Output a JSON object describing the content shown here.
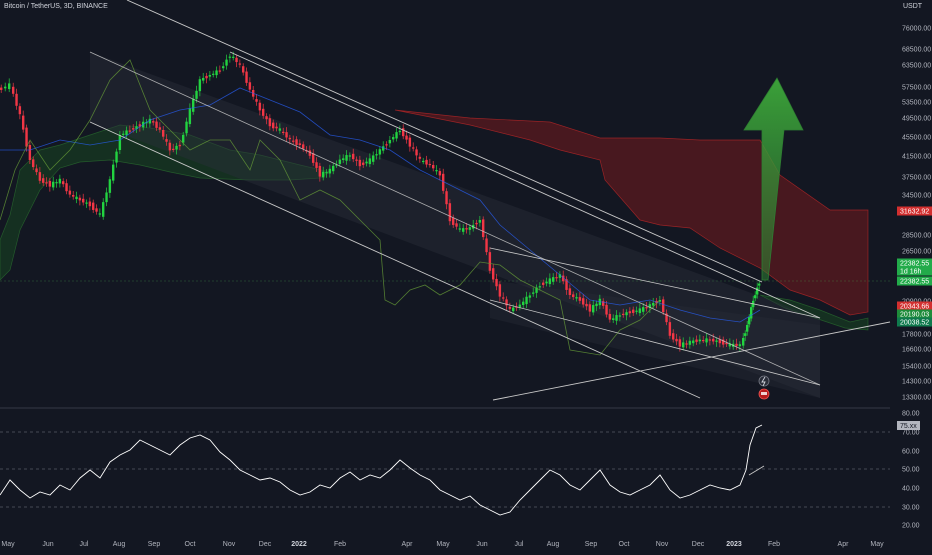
{
  "header": {
    "symbol_title": "Bitcoin / TetherUS, 3D, BINANCE",
    "currency": "USDT"
  },
  "price_axis": {
    "ticks": [
      76000,
      68500,
      63500,
      57500,
      53500,
      49500,
      45500,
      41500,
      37500,
      34500,
      28500,
      26500,
      20900,
      17800,
      16600,
      15400,
      14300,
      13300
    ]
  },
  "price_tags": [
    {
      "label": "31632.92",
      "color": "#d32f2f"
    },
    {
      "label": "22382.55",
      "color": "#22ab4a"
    },
    {
      "label": "1d 16h",
      "color": "#22ab4a"
    },
    {
      "label": "22382.55",
      "color": "#22ab4a"
    },
    {
      "label": "20343.66",
      "color": "#d32f2f"
    },
    {
      "label": "20190.03",
      "color": "#1e8c3a"
    },
    {
      "label": "20038.52",
      "color": "#0f7a4d"
    }
  ],
  "rsi_axis": {
    "ticks": [
      "80.00",
      "70.00",
      "60.00",
      "50.00",
      "40.00",
      "30.00",
      "20.00"
    ],
    "current_label": "75.xx"
  },
  "time_axis": {
    "labels": [
      "May",
      "Jun",
      "Jul",
      "Aug",
      "Sep",
      "Oct",
      "Nov",
      "Dec",
      "2022",
      "Feb",
      "Apr",
      "May",
      "Jun",
      "Jul",
      "Aug",
      "Sep",
      "Oct",
      "Nov",
      "Dec",
      "2023",
      "Feb",
      "Apr",
      "May"
    ]
  },
  "colors": {
    "background": "#131722",
    "up_candle": "#22d340",
    "down_candle": "#f23645",
    "rsi_line": "#ffffff",
    "channel_lines": "#c8c8c8",
    "arrow": "#2e7d32",
    "cloud_bull": "#1b5e20",
    "cloud_bear": "#b71c1c"
  },
  "icons": {
    "event_marker": "lightning-icon",
    "earnings_marker": "flag-icon"
  }
}
